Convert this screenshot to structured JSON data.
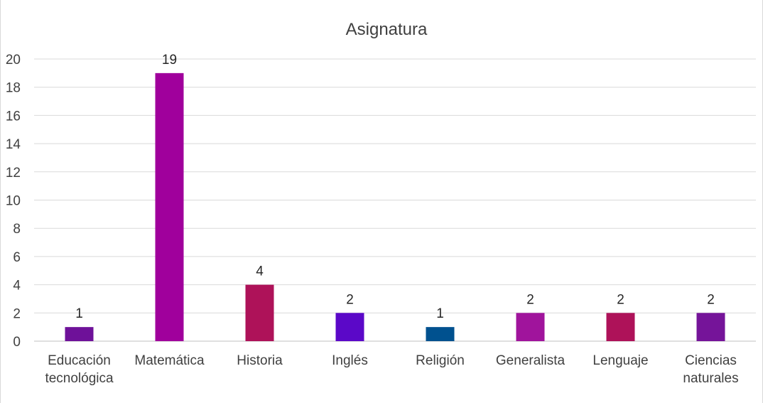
{
  "chart_data": {
    "type": "bar",
    "title": "Asignatura",
    "categories": [
      [
        "Educación",
        "tecnológica"
      ],
      [
        "Matemática"
      ],
      [
        "Historia"
      ],
      [
        "Inglés"
      ],
      [
        "Religión"
      ],
      [
        "Generalista"
      ],
      [
        "Lenguaje"
      ],
      [
        "Ciencias",
        "naturales"
      ]
    ],
    "values": [
      1,
      19,
      4,
      2,
      1,
      2,
      2,
      2
    ],
    "colors": [
      "#6e1199",
      "#a0009c",
      "#ae1259",
      "#5b08c8",
      "#00518f",
      "#a0149c",
      "#ae1259",
      "#751499"
    ],
    "ylim": [
      0,
      20
    ],
    "yticks": [
      0,
      2,
      4,
      6,
      8,
      10,
      12,
      14,
      16,
      18,
      20
    ],
    "grid": true,
    "data_labels": true
  }
}
